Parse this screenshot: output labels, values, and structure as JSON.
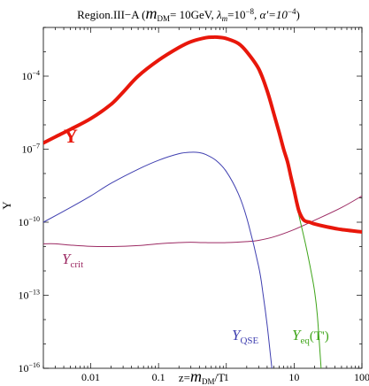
{
  "chart_data": {
    "type": "line",
    "title": "Region.III−A (m_DM= 10GeV, λ_m=10^−8, α'=10^−4)",
    "title_parts": {
      "prefix": "Region.III−A (",
      "m": "m",
      "m_sub": "DM",
      "mass": "= 10GeV, ",
      "lambda": "λ",
      "lambda_sub": "m",
      "lambda_val": "=10",
      "lambda_exp": "−8",
      "alpha": ", α'=10",
      "alpha_exp": "−4",
      "suffix": ")"
    },
    "xlabel": "z=m_DM/T",
    "xlabel_parts": {
      "pre": "z=",
      "m": "m",
      "sub": "DM",
      "post": "/T"
    },
    "ylabel": "Y",
    "xscale": "log",
    "yscale": "log",
    "xlim": [
      0.002,
      100
    ],
    "ylim": [
      1e-16,
      0.01
    ],
    "x_ticks": [
      {
        "value": 0.01,
        "label": "0.01"
      },
      {
        "value": 0.1,
        "label": "0.1"
      },
      {
        "value": 1,
        "label": "1"
      },
      {
        "value": 10,
        "label": "10"
      },
      {
        "value": 100,
        "label": "100"
      }
    ],
    "y_ticks": [
      {
        "value": 0.0001,
        "base": "10",
        "exp": "−4"
      },
      {
        "value": 1e-07,
        "base": "10",
        "exp": "−7"
      },
      {
        "value": 1e-10,
        "base": "10",
        "exp": "−10"
      },
      {
        "value": 1e-13,
        "base": "10",
        "exp": "−13"
      },
      {
        "value": 1e-16,
        "base": "10",
        "exp": "−16"
      }
    ],
    "series": [
      {
        "name": "Y",
        "color": "#e8170b",
        "width": 4,
        "points": [
          [
            0.002,
            1.8e-07
          ],
          [
            0.003,
            3.2e-07
          ],
          [
            0.005,
            6.5e-07
          ],
          [
            0.01,
            1.8e-06
          ],
          [
            0.02,
            7e-06
          ],
          [
            0.03,
            2.2e-05
          ],
          [
            0.05,
            0.0001
          ],
          [
            0.1,
            0.00045
          ],
          [
            0.2,
            0.0015
          ],
          [
            0.3,
            0.0026
          ],
          [
            0.5,
            0.0038
          ],
          [
            0.65,
            0.004
          ],
          [
            0.8,
            0.0039
          ],
          [
            1,
            0.0035
          ],
          [
            1.5,
            0.0022
          ],
          [
            2,
            0.001
          ],
          [
            3,
            0.0002
          ],
          [
            4,
            2.5e-05
          ],
          [
            5,
            3e-06
          ],
          [
            6,
            5e-07
          ],
          [
            7,
            1e-07
          ],
          [
            8,
            3e-08
          ],
          [
            9,
            7e-09
          ],
          [
            10,
            2e-09
          ],
          [
            11,
            6e-10
          ],
          [
            12,
            2.5e-10
          ],
          [
            14,
            1.2e-10
          ],
          [
            17,
            1e-10
          ],
          [
            20,
            8.5e-11
          ],
          [
            30,
            6.5e-11
          ],
          [
            50,
            5e-11
          ],
          [
            100,
            4e-11
          ]
        ]
      },
      {
        "name": "Y_QSE",
        "color": "#3f3fb0",
        "width": 1,
        "points": [
          [
            0.002,
            1e-10
          ],
          [
            0.005,
            4e-10
          ],
          [
            0.01,
            1.2e-09
          ],
          [
            0.02,
            4e-09
          ],
          [
            0.05,
            1.5e-08
          ],
          [
            0.1,
            3.5e-08
          ],
          [
            0.2,
            6.5e-08
          ],
          [
            0.3,
            7.5e-08
          ],
          [
            0.4,
            7.2e-08
          ],
          [
            0.5,
            6e-08
          ],
          [
            0.7,
            3.5e-08
          ],
          [
            1,
            1.2e-08
          ],
          [
            1.5,
            1.5e-09
          ],
          [
            2,
            1.5e-10
          ],
          [
            3,
            1.5e-12
          ],
          [
            3.5,
            1e-13
          ],
          [
            4,
            6e-15
          ],
          [
            4.5,
            3e-16
          ],
          [
            4.7,
            1e-16
          ]
        ]
      },
      {
        "name": "Y_crit",
        "color": "#9c2a63",
        "width": 1,
        "points": [
          [
            0.002,
            1.3e-11
          ],
          [
            0.003,
            1.3e-11
          ],
          [
            0.005,
            1.15e-11
          ],
          [
            0.01,
            1.02e-11
          ],
          [
            0.02,
            1e-11
          ],
          [
            0.05,
            1.1e-11
          ],
          [
            0.1,
            1.3e-11
          ],
          [
            0.2,
            1.45e-11
          ],
          [
            0.3,
            1.5e-11
          ],
          [
            0.5,
            1.45e-11
          ],
          [
            1,
            1.45e-11
          ],
          [
            2,
            1.6e-11
          ],
          [
            3,
            1.8e-11
          ],
          [
            5,
            2.5e-11
          ],
          [
            10,
            5e-11
          ],
          [
            20,
            1.2e-10
          ],
          [
            50,
            4e-10
          ],
          [
            100,
            1.2e-09
          ]
        ]
      },
      {
        "name": "Y_eq(T')",
        "color": "#3fa51a",
        "width": 1,
        "points": [
          [
            3,
            0.00015
          ],
          [
            4,
            2.5e-05
          ],
          [
            5,
            3.5e-06
          ],
          [
            6,
            5e-07
          ],
          [
            7,
            1e-07
          ],
          [
            8,
            3e-08
          ],
          [
            10,
            1.5e-09
          ],
          [
            12,
            1.5e-10
          ],
          [
            15,
            1e-11
          ],
          [
            18,
            8e-13
          ],
          [
            20,
            1.5e-13
          ],
          [
            22,
            1.5e-14
          ],
          [
            25,
            1e-16
          ]
        ]
      }
    ],
    "annotations": {
      "Y": {
        "text": "Y",
        "color": "#e8170b"
      },
      "Y_crit": {
        "text": "Y",
        "sub": "crit",
        "color": "#9c2a63"
      },
      "Y_QSE": {
        "text": "Y",
        "sub": "QSE",
        "color": "#3f3fb0"
      },
      "Y_eq": {
        "text": "Y",
        "sub": "eq",
        "post": "(T')",
        "color": "#3fa51a"
      }
    }
  }
}
